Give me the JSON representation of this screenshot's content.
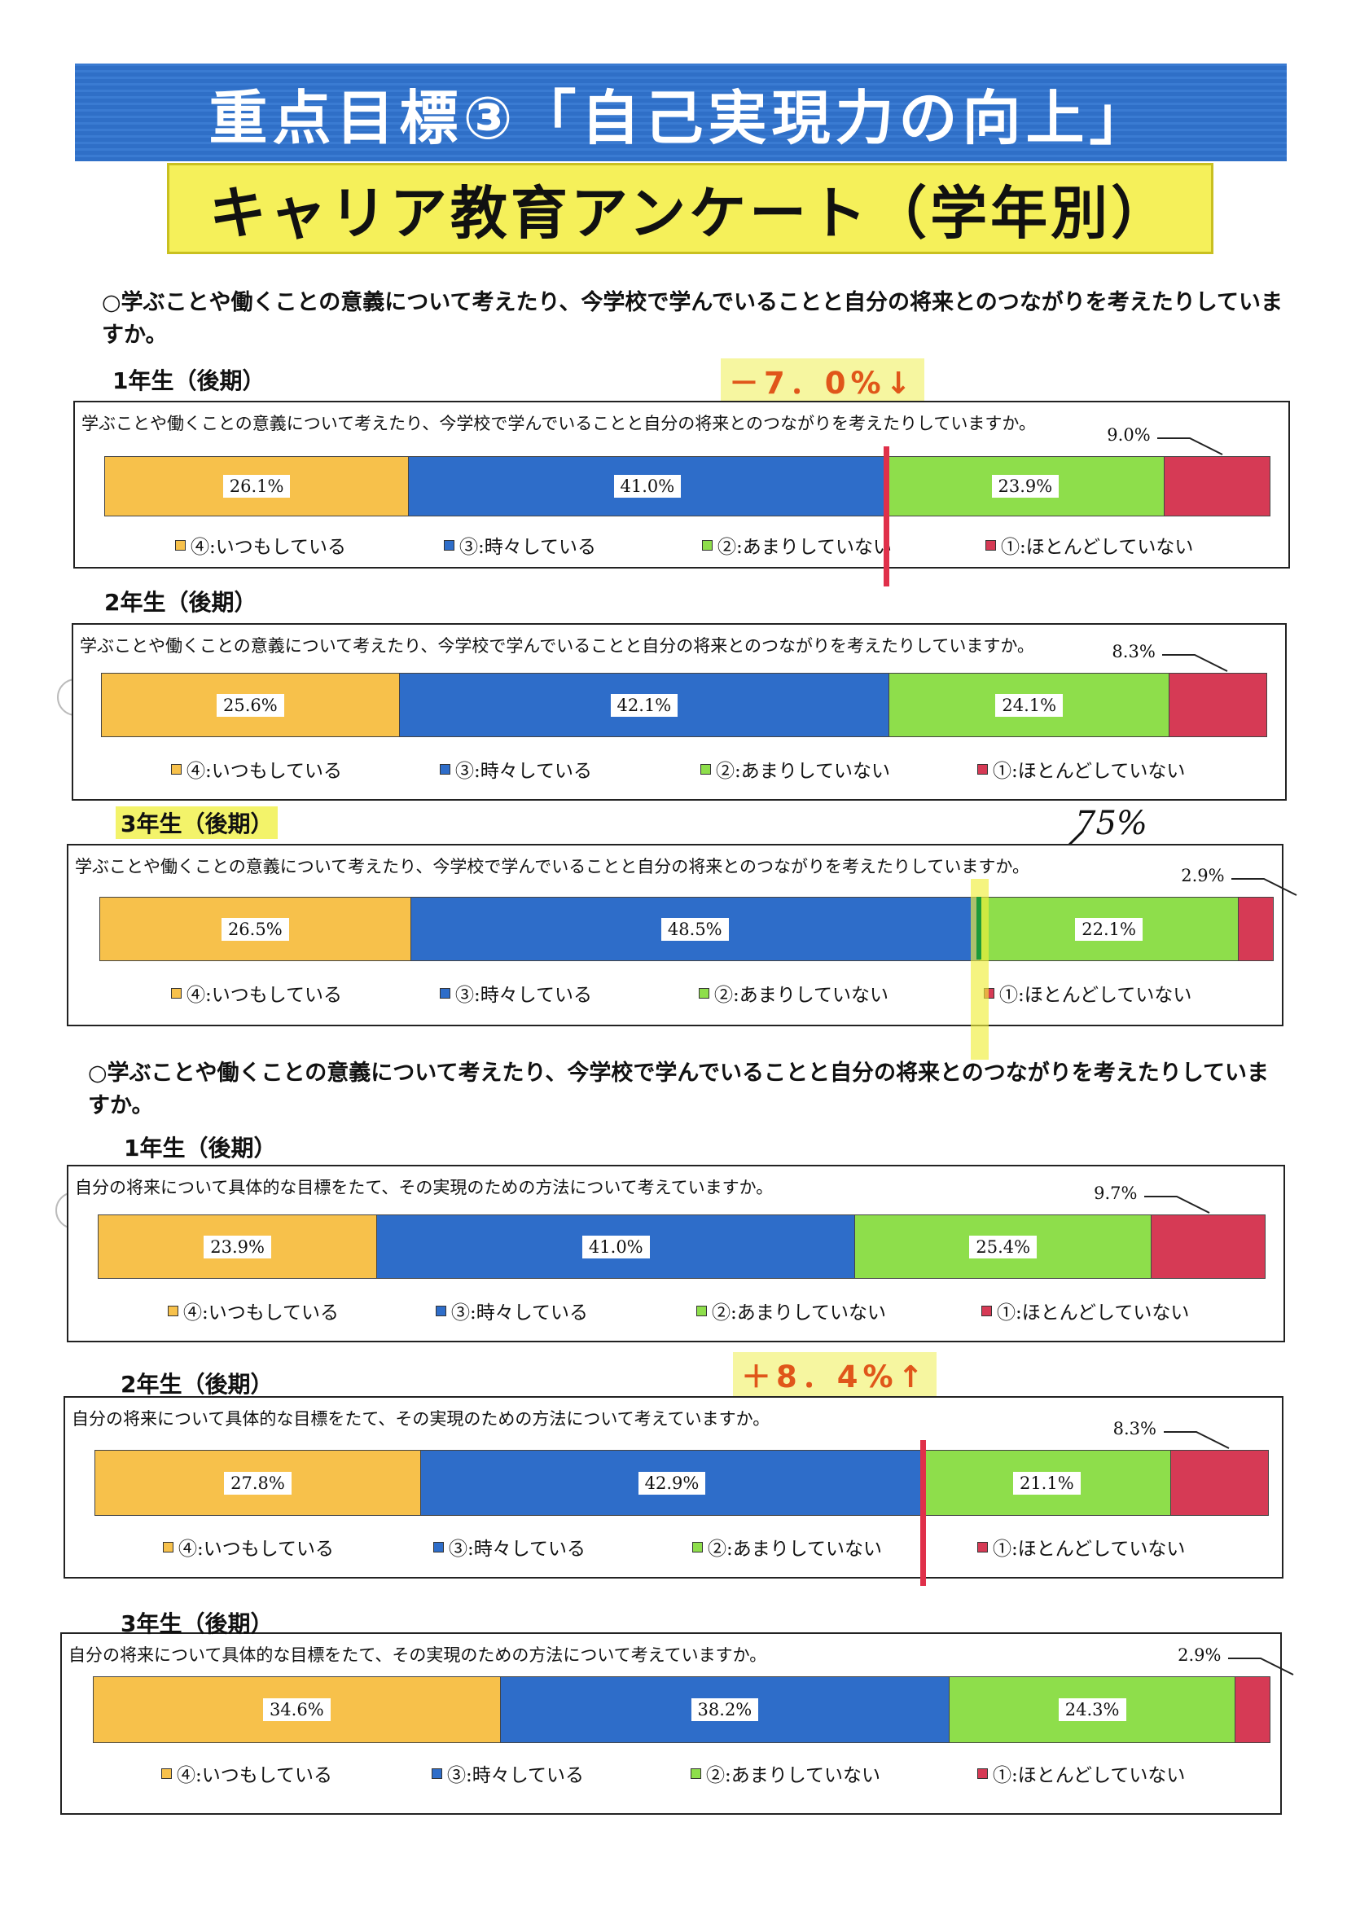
{
  "title": "重点目標③「自己実現力の向上」",
  "subtitle": "キャリア教育アンケート（学年別）",
  "sections": [
    {
      "question": "○学ぶことや働くことの意義について考えたり、今学校で学んでいることと自分の将来とのつながりを考えたりしていますか。"
    },
    {
      "question": "○学ぶことや働くことの意義について考えたり、今学校で学んでいることと自分の将来とのつながりを考えたりしていますか。"
    }
  ],
  "legend": [
    "④:いつもしている",
    "③:時々している",
    "②:あまりしていない",
    "①:ほとんどしていない"
  ],
  "colors": [
    "#f7c14b",
    "#2e6dc9",
    "#8ede4b",
    "#d63a55"
  ],
  "annotations": {
    "change_1": "－7．0%↓",
    "change_2": "＋8．4%↑",
    "handwritten": "75%"
  },
  "chart_data": [
    {
      "type": "bar",
      "stacked": true,
      "orientation": "horizontal",
      "grade": "1年生（後期）",
      "title": "学ぶことや働くことの意義について考えたり、今学校で学んでいることと自分の将来とのつながりを考えたりしていますか。",
      "values": [
        26.1,
        41.0,
        23.9,
        9.0
      ],
      "labels": [
        "26.1%",
        "41.0%",
        "23.9%",
        "9.0%"
      ]
    },
    {
      "type": "bar",
      "stacked": true,
      "orientation": "horizontal",
      "grade": "2年生（後期）",
      "title": "学ぶことや働くことの意義について考えたり、今学校で学んでいることと自分の将来とのつながりを考えたりしていますか。",
      "values": [
        25.6,
        42.1,
        24.1,
        8.3
      ],
      "labels": [
        "25.6%",
        "42.1%",
        "24.1%",
        "8.3%"
      ]
    },
    {
      "type": "bar",
      "stacked": true,
      "orientation": "horizontal",
      "grade": "3年生（後期）",
      "title": "学ぶことや働くことの意義について考えたり、今学校で学んでいることと自分の将来とのつながりを考えたりしていますか。",
      "values": [
        26.5,
        48.5,
        22.1,
        2.9
      ],
      "labels": [
        "26.5%",
        "48.5%",
        "22.1%",
        "2.9%"
      ]
    },
    {
      "type": "bar",
      "stacked": true,
      "orientation": "horizontal",
      "grade": "1年生（後期）",
      "title": "自分の将来について具体的な目標をたて、その実現のための方法について考えていますか。",
      "values": [
        23.9,
        41.0,
        25.4,
        9.7
      ],
      "labels": [
        "23.9%",
        "41.0%",
        "25.4%",
        "9.7%"
      ]
    },
    {
      "type": "bar",
      "stacked": true,
      "orientation": "horizontal",
      "grade": "2年生（後期）",
      "title": "自分の将来について具体的な目標をたて、その実現のための方法について考えていますか。",
      "values": [
        27.8,
        42.9,
        21.1,
        8.3
      ],
      "labels": [
        "27.8%",
        "42.9%",
        "21.1%",
        "8.3%"
      ]
    },
    {
      "type": "bar",
      "stacked": true,
      "orientation": "horizontal",
      "grade": "3年生（後期）",
      "title": "自分の将来について具体的な目標をたて、その実現のための方法について考えていますか。",
      "values": [
        34.6,
        38.2,
        24.3,
        2.9
      ],
      "labels": [
        "34.6%",
        "38.2%",
        "24.3%",
        "2.9%"
      ]
    }
  ]
}
